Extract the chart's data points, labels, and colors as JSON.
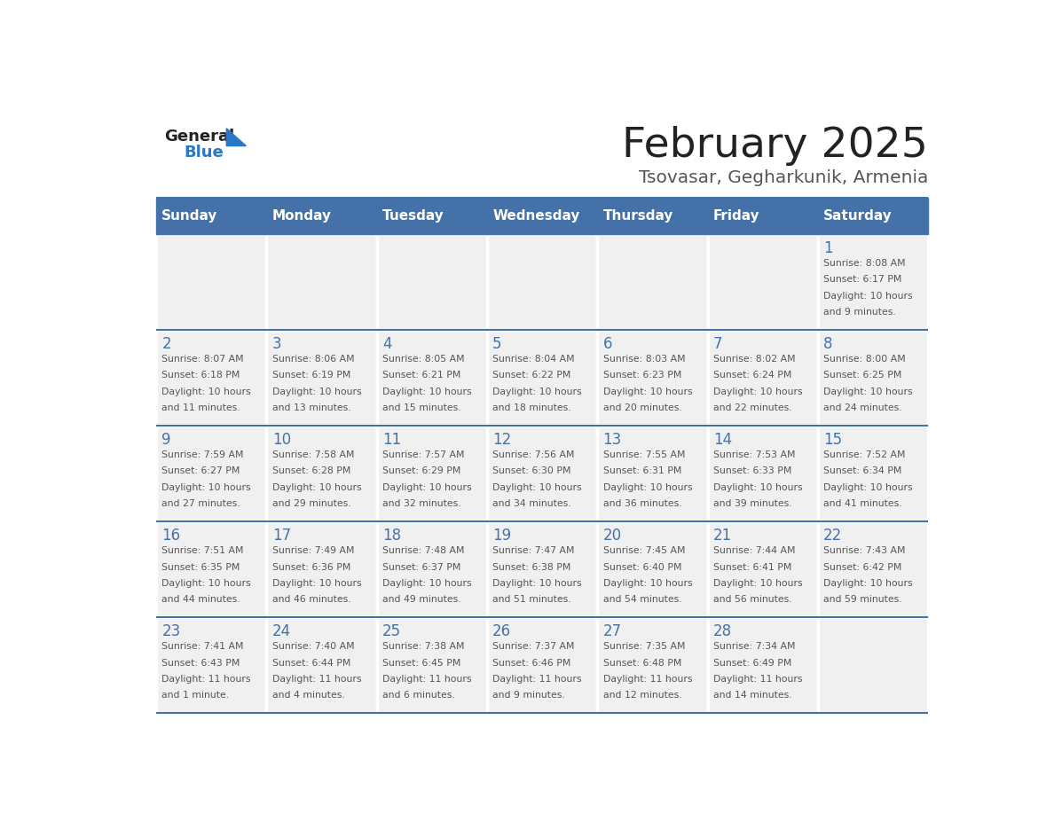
{
  "title": "February 2025",
  "subtitle": "Tsovasar, Gegharkunik, Armenia",
  "days_of_week": [
    "Sunday",
    "Monday",
    "Tuesday",
    "Wednesday",
    "Thursday",
    "Friday",
    "Saturday"
  ],
  "header_bg": "#4472a8",
  "header_text_color": "#ffffff",
  "cell_bg_light": "#f0f0f0",
  "cell_bg_white": "#ffffff",
  "cell_border_color": "#4472a8",
  "day_number_color": "#4472a8",
  "text_color": "#555555",
  "logo_general_color": "#222222",
  "logo_blue_color": "#2878c8",
  "title_color": "#222222",
  "subtitle_color": "#555555",
  "calendar_data": [
    [
      null,
      null,
      null,
      null,
      null,
      null,
      {
        "day": 1,
        "sunrise": "8:08 AM",
        "sunset": "6:17 PM",
        "daylight": "10 hours and 9 minutes."
      }
    ],
    [
      {
        "day": 2,
        "sunrise": "8:07 AM",
        "sunset": "6:18 PM",
        "daylight": "10 hours and 11 minutes."
      },
      {
        "day": 3,
        "sunrise": "8:06 AM",
        "sunset": "6:19 PM",
        "daylight": "10 hours and 13 minutes."
      },
      {
        "day": 4,
        "sunrise": "8:05 AM",
        "sunset": "6:21 PM",
        "daylight": "10 hours and 15 minutes."
      },
      {
        "day": 5,
        "sunrise": "8:04 AM",
        "sunset": "6:22 PM",
        "daylight": "10 hours and 18 minutes."
      },
      {
        "day": 6,
        "sunrise": "8:03 AM",
        "sunset": "6:23 PM",
        "daylight": "10 hours and 20 minutes."
      },
      {
        "day": 7,
        "sunrise": "8:02 AM",
        "sunset": "6:24 PM",
        "daylight": "10 hours and 22 minutes."
      },
      {
        "day": 8,
        "sunrise": "8:00 AM",
        "sunset": "6:25 PM",
        "daylight": "10 hours and 24 minutes."
      }
    ],
    [
      {
        "day": 9,
        "sunrise": "7:59 AM",
        "sunset": "6:27 PM",
        "daylight": "10 hours and 27 minutes."
      },
      {
        "day": 10,
        "sunrise": "7:58 AM",
        "sunset": "6:28 PM",
        "daylight": "10 hours and 29 minutes."
      },
      {
        "day": 11,
        "sunrise": "7:57 AM",
        "sunset": "6:29 PM",
        "daylight": "10 hours and 32 minutes."
      },
      {
        "day": 12,
        "sunrise": "7:56 AM",
        "sunset": "6:30 PM",
        "daylight": "10 hours and 34 minutes."
      },
      {
        "day": 13,
        "sunrise": "7:55 AM",
        "sunset": "6:31 PM",
        "daylight": "10 hours and 36 minutes."
      },
      {
        "day": 14,
        "sunrise": "7:53 AM",
        "sunset": "6:33 PM",
        "daylight": "10 hours and 39 minutes."
      },
      {
        "day": 15,
        "sunrise": "7:52 AM",
        "sunset": "6:34 PM",
        "daylight": "10 hours and 41 minutes."
      }
    ],
    [
      {
        "day": 16,
        "sunrise": "7:51 AM",
        "sunset": "6:35 PM",
        "daylight": "10 hours and 44 minutes."
      },
      {
        "day": 17,
        "sunrise": "7:49 AM",
        "sunset": "6:36 PM",
        "daylight": "10 hours and 46 minutes."
      },
      {
        "day": 18,
        "sunrise": "7:48 AM",
        "sunset": "6:37 PM",
        "daylight": "10 hours and 49 minutes."
      },
      {
        "day": 19,
        "sunrise": "7:47 AM",
        "sunset": "6:38 PM",
        "daylight": "10 hours and 51 minutes."
      },
      {
        "day": 20,
        "sunrise": "7:45 AM",
        "sunset": "6:40 PM",
        "daylight": "10 hours and 54 minutes."
      },
      {
        "day": 21,
        "sunrise": "7:44 AM",
        "sunset": "6:41 PM",
        "daylight": "10 hours and 56 minutes."
      },
      {
        "day": 22,
        "sunrise": "7:43 AM",
        "sunset": "6:42 PM",
        "daylight": "10 hours and 59 minutes."
      }
    ],
    [
      {
        "day": 23,
        "sunrise": "7:41 AM",
        "sunset": "6:43 PM",
        "daylight": "11 hours and 1 minute."
      },
      {
        "day": 24,
        "sunrise": "7:40 AM",
        "sunset": "6:44 PM",
        "daylight": "11 hours and 4 minutes."
      },
      {
        "day": 25,
        "sunrise": "7:38 AM",
        "sunset": "6:45 PM",
        "daylight": "11 hours and 6 minutes."
      },
      {
        "day": 26,
        "sunrise": "7:37 AM",
        "sunset": "6:46 PM",
        "daylight": "11 hours and 9 minutes."
      },
      {
        "day": 27,
        "sunrise": "7:35 AM",
        "sunset": "6:48 PM",
        "daylight": "11 hours and 12 minutes."
      },
      {
        "day": 28,
        "sunrise": "7:34 AM",
        "sunset": "6:49 PM",
        "daylight": "11 hours and 14 minutes."
      },
      null
    ]
  ]
}
